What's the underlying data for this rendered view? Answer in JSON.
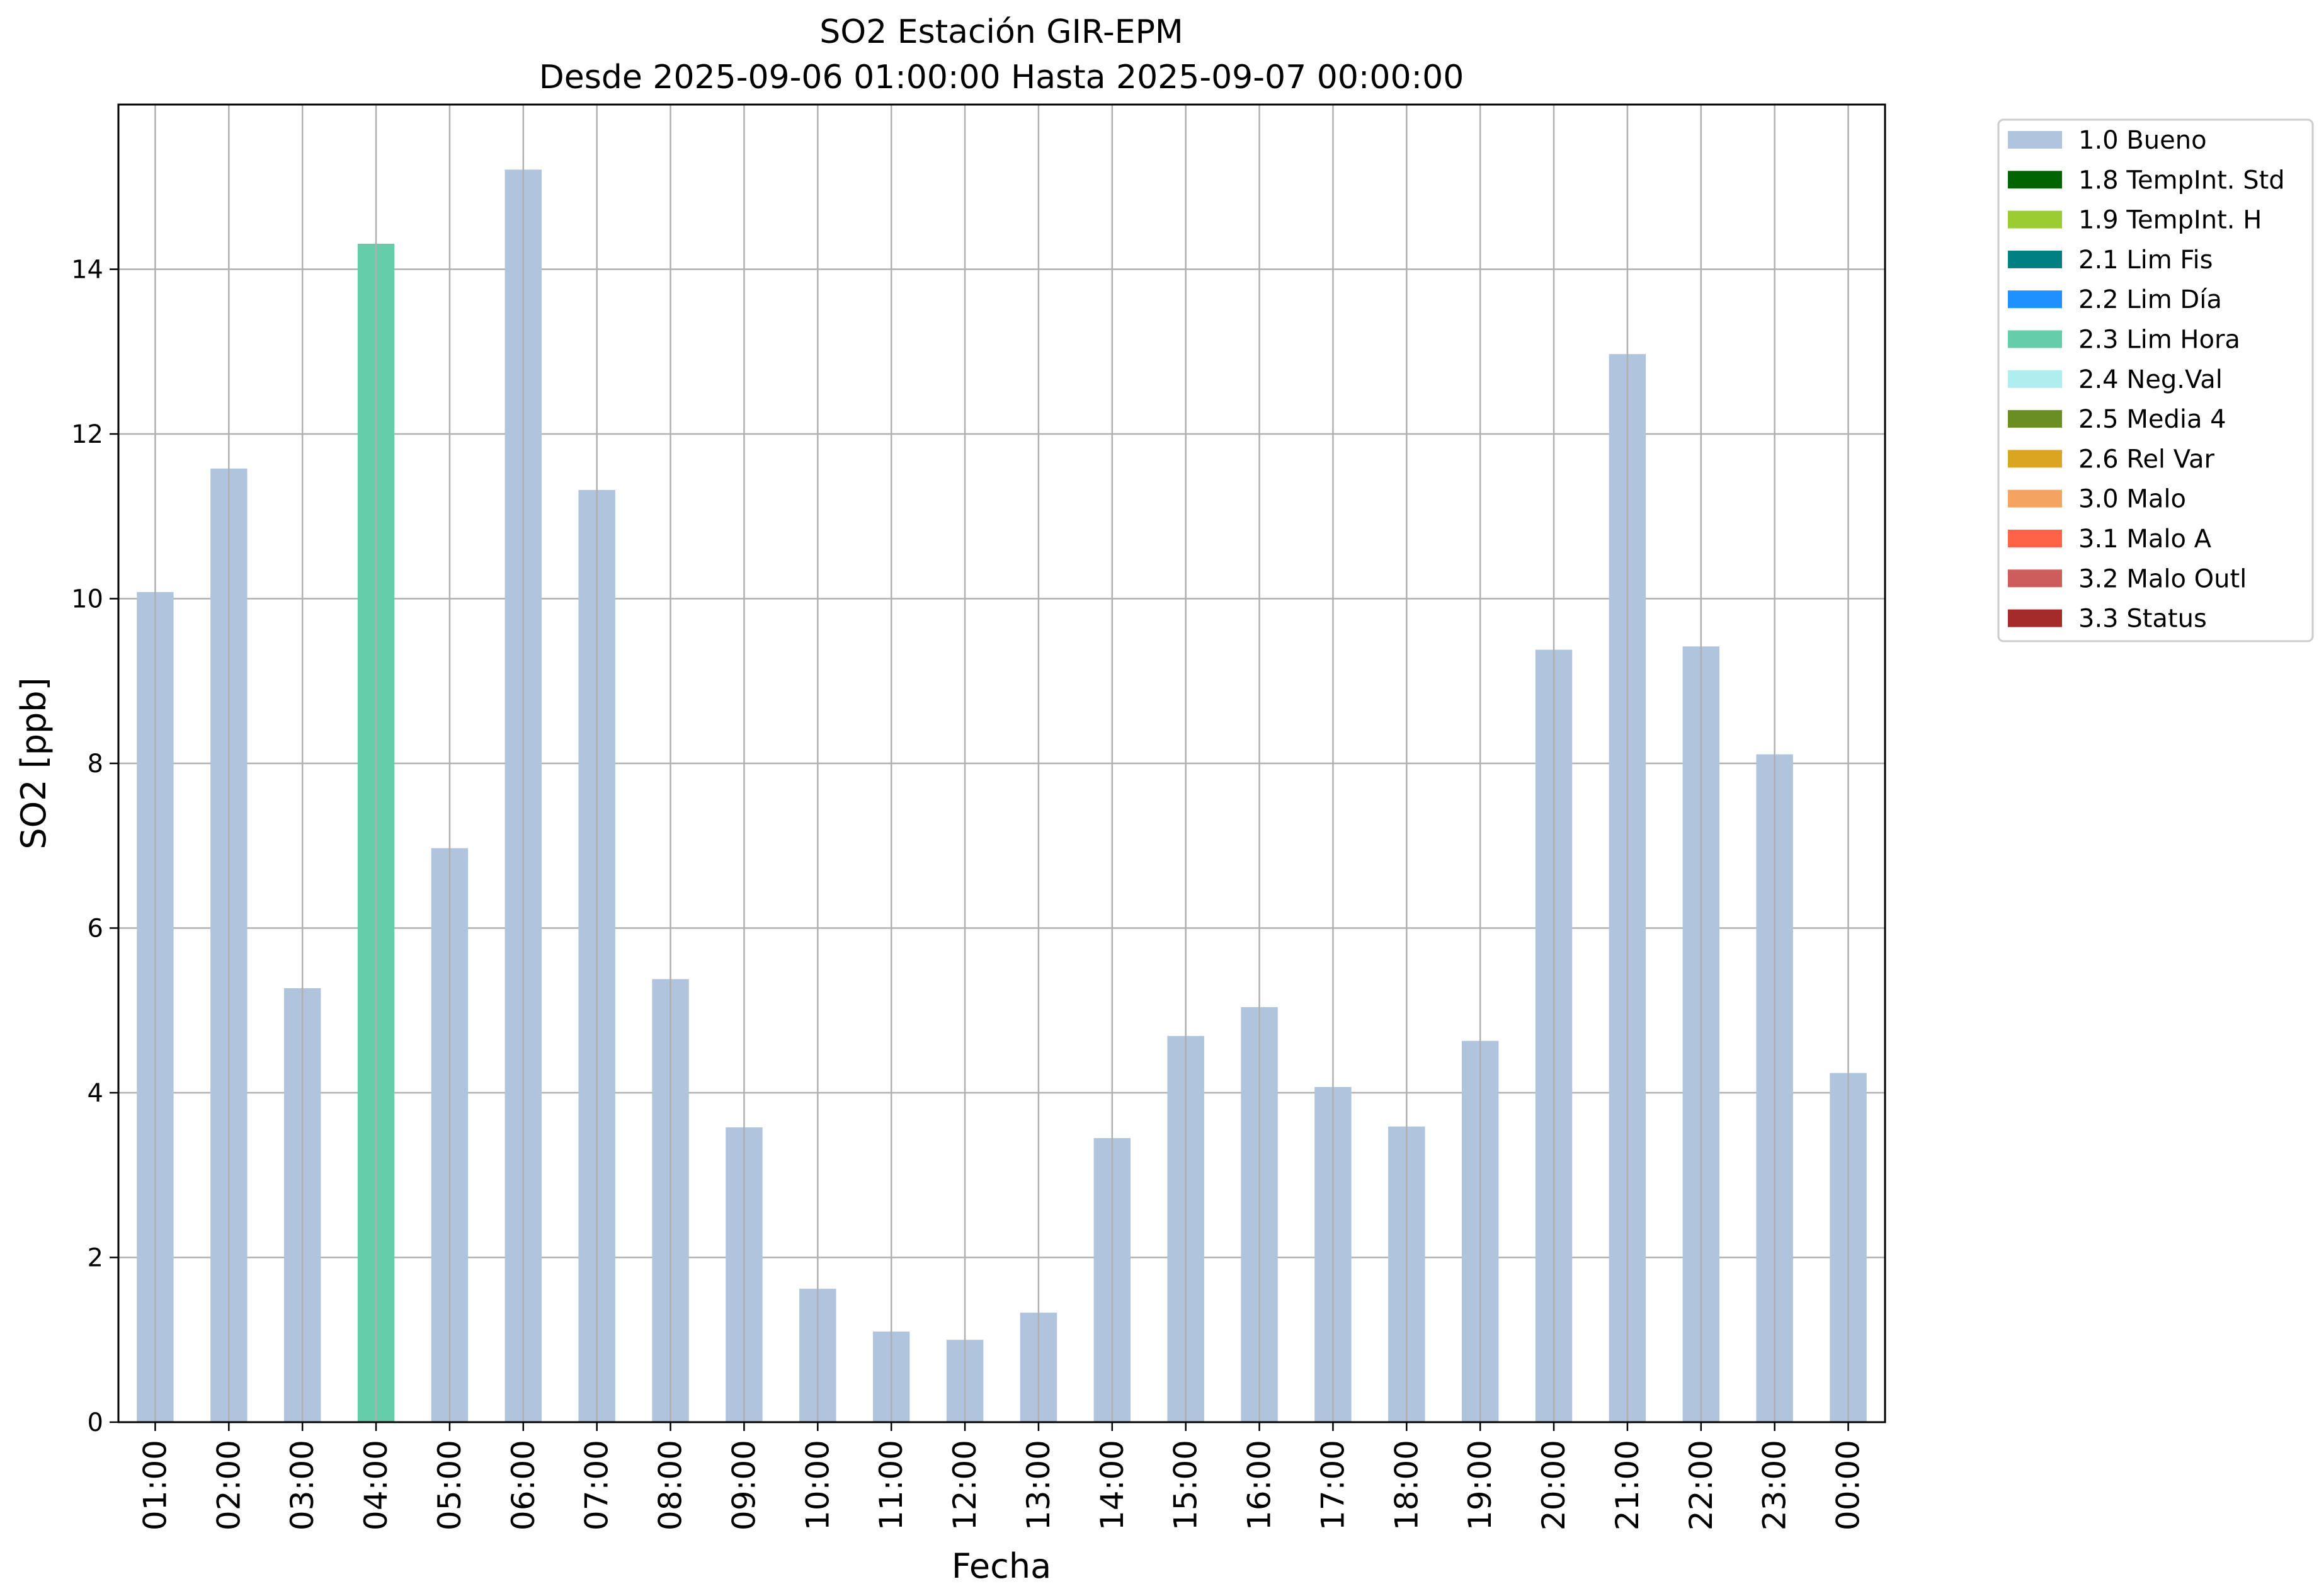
{
  "chart_data": {
    "type": "bar",
    "title": "SO2 Estación GIR-EPM",
    "subtitle": "Desde 2025-09-06 01:00:00 Hasta 2025-09-07 00:00:00",
    "xlabel": "Fecha",
    "ylabel": "SO2 [ppb]",
    "ylim": [
      0,
      16
    ],
    "yticks": [
      0,
      2,
      4,
      6,
      8,
      10,
      12,
      14
    ],
    "grid": true,
    "legend_position": "outside-top-right",
    "categories": [
      "01:00",
      "02:00",
      "03:00",
      "04:00",
      "05:00",
      "06:00",
      "07:00",
      "08:00",
      "09:00",
      "10:00",
      "11:00",
      "12:00",
      "13:00",
      "14:00",
      "15:00",
      "16:00",
      "17:00",
      "18:00",
      "19:00",
      "20:00",
      "21:00",
      "22:00",
      "23:00",
      "00:00"
    ],
    "values": [
      10.08,
      11.58,
      5.27,
      14.31,
      6.97,
      15.21,
      11.32,
      5.38,
      3.58,
      1.62,
      1.1,
      1.0,
      1.33,
      3.45,
      4.69,
      5.04,
      4.07,
      3.59,
      4.63,
      9.38,
      12.97,
      9.42,
      8.11,
      4.24
    ],
    "flags": [
      "1.0 Bueno",
      "1.0 Bueno",
      "1.0 Bueno",
      "2.3 Lim Hora",
      "1.0 Bueno",
      "1.0 Bueno",
      "1.0 Bueno",
      "1.0 Bueno",
      "1.0 Bueno",
      "1.0 Bueno",
      "1.0 Bueno",
      "1.0 Bueno",
      "1.0 Bueno",
      "1.0 Bueno",
      "1.0 Bueno",
      "1.0 Bueno",
      "1.0 Bueno",
      "1.0 Bueno",
      "1.0 Bueno",
      "1.0 Bueno",
      "1.0 Bueno",
      "1.0 Bueno",
      "1.0 Bueno",
      "1.0 Bueno"
    ],
    "legend": [
      {
        "label": "1.0 Bueno",
        "color": "#b0c4de"
      },
      {
        "label": "1.8 TempInt. Std",
        "color": "#006400"
      },
      {
        "label": "1.9 TempInt. H",
        "color": "#9acd32"
      },
      {
        "label": "2.1 Lim Fis",
        "color": "#008080"
      },
      {
        "label": "2.2 Lim Día",
        "color": "#1e90ff"
      },
      {
        "label": "2.3 Lim Hora",
        "color": "#66cdaa"
      },
      {
        "label": "2.4 Neg.Val",
        "color": "#afeeee"
      },
      {
        "label": "2.5 Media 4",
        "color": "#6b8e23"
      },
      {
        "label": "2.6 Rel Var",
        "color": "#daa520"
      },
      {
        "label": "3.0 Malo",
        "color": "#f4a460"
      },
      {
        "label": "3.1 Malo A",
        "color": "#ff6347"
      },
      {
        "label": "3.2 Malo Outl",
        "color": "#cd5c5c"
      },
      {
        "label": "3.3 Status",
        "color": "#a52a2a"
      }
    ]
  }
}
